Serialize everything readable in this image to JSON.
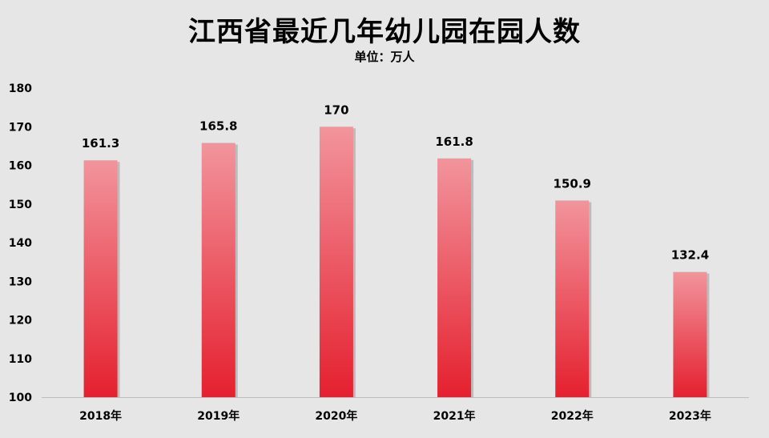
{
  "chart_data": {
    "type": "bar",
    "title": "江西省最近几年幼儿园在园人数",
    "subtitle": "单位：万人",
    "categories": [
      "2018年",
      "2019年",
      "2020年",
      "2021年",
      "2022年",
      "2023年"
    ],
    "values": [
      161.3,
      165.8,
      170,
      161.8,
      150.9,
      132.4
    ],
    "ylim": [
      100,
      180
    ],
    "yticks": [
      100,
      110,
      120,
      130,
      140,
      150,
      160,
      170,
      180
    ],
    "xlabel": "",
    "ylabel": "",
    "grid": false,
    "bar_color_top": "#f2949c",
    "bar_color_bottom": "#e5202f"
  }
}
